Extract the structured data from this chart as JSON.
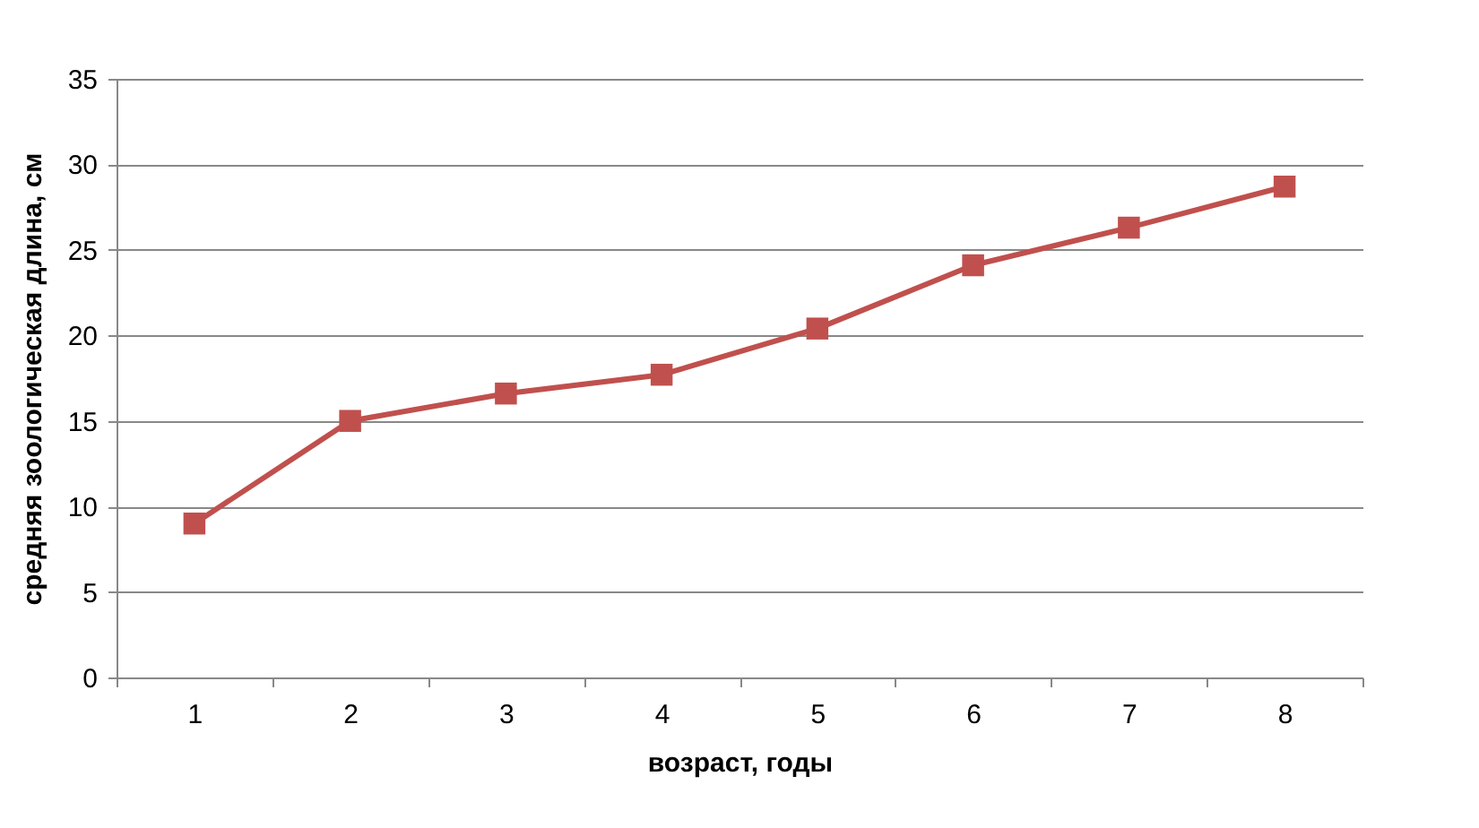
{
  "chart_data": {
    "type": "line",
    "xlabel": "возраст, годы",
    "ylabel": "средняя зоологическая длина, см",
    "categories": [
      "1",
      "2",
      "3",
      "4",
      "5",
      "6",
      "7",
      "8"
    ],
    "series": [
      {
        "color": "#c0504d",
        "values": [
          9.0,
          15.0,
          16.6,
          17.7,
          20.4,
          24.1,
          26.3,
          28.7
        ]
      }
    ],
    "ylim": [
      0,
      35
    ],
    "yticks": [
      0,
      5,
      10,
      15,
      20,
      25,
      30,
      35
    ],
    "grid": "y",
    "marker": "square",
    "line_style": "solid"
  }
}
